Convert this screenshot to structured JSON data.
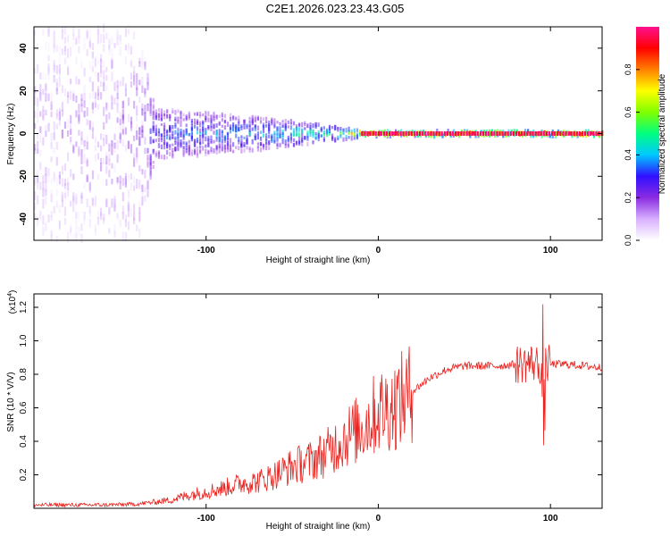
{
  "title": "C2E1.2026.023.23.43.G05",
  "chart_data": [
    {
      "type": "heatmap",
      "name": "spectrogram",
      "xlabel": "Height of straight line (km)",
      "ylabel": "Frequency (Hz)",
      "xlim": [
        -200,
        130
      ],
      "ylim": [
        -50,
        50
      ],
      "x_ticks": [
        -100,
        0,
        100
      ],
      "y_ticks": [
        -40,
        -20,
        0,
        20,
        40
      ],
      "colorbar": {
        "label": "Normalized spectral amplitude",
        "range": [
          0,
          1
        ],
        "ticks": [
          "0.0",
          "0.2",
          "0.4",
          "0.6",
          "0.8"
        ],
        "colors": [
          "#ffffff",
          "#d8b0ff",
          "#8a2be2",
          "#3010ff",
          "#00c8ff",
          "#00ff80",
          "#7fff00",
          "#ffff00",
          "#ff8000",
          "#ff0000",
          "#ff1090"
        ]
      },
      "description_points": [
        {
          "x": -200,
          "spread_hz": 50,
          "amplitude": 0.15
        },
        {
          "x": -140,
          "spread_hz": 50,
          "amplitude": 0.2
        },
        {
          "x": -130,
          "spread_hz": 12,
          "amplitude": 0.35
        },
        {
          "x": -60,
          "spread_hz": 7,
          "amplitude": 0.45
        },
        {
          "x": -20,
          "spread_hz": 3,
          "amplitude": 0.55
        },
        {
          "x": -10,
          "spread_hz": 1.2,
          "amplitude": 0.95
        },
        {
          "x": 130,
          "spread_hz": 1.2,
          "amplitude": 0.95
        }
      ]
    },
    {
      "type": "line",
      "name": "snr",
      "xlabel": "Height of straight line (km)",
      "ylabel": "SNR (10 * V/V)",
      "y_multiplier": "(x10",
      "y_multiplier_exp": "4",
      "xlim": [
        -200,
        130
      ],
      "ylim": [
        0,
        1.28
      ],
      "x_ticks": [
        -100,
        0,
        100
      ],
      "y_ticks": [
        "0.2",
        "0.4",
        "0.6",
        "0.8",
        "1.0",
        "1.2"
      ],
      "color": "#e8231f",
      "series": [
        {
          "name": "SNR",
          "x": [
            -200,
            -180,
            -160,
            -140,
            -120,
            -110,
            -100,
            -90,
            -80,
            -70,
            -60,
            -50,
            -40,
            -30,
            -20,
            -10,
            0,
            10,
            20,
            30,
            40,
            50,
            60,
            70,
            80,
            90,
            95,
            100,
            110,
            120,
            130
          ],
          "y": [
            0.02,
            0.02,
            0.02,
            0.025,
            0.05,
            0.08,
            0.1,
            0.12,
            0.15,
            0.16,
            0.2,
            0.25,
            0.28,
            0.33,
            0.42,
            0.48,
            0.58,
            0.62,
            0.7,
            0.78,
            0.83,
            0.85,
            0.85,
            0.85,
            0.86,
            0.87,
            0.85,
            0.86,
            0.86,
            0.85,
            0.84
          ]
        }
      ]
    }
  ]
}
